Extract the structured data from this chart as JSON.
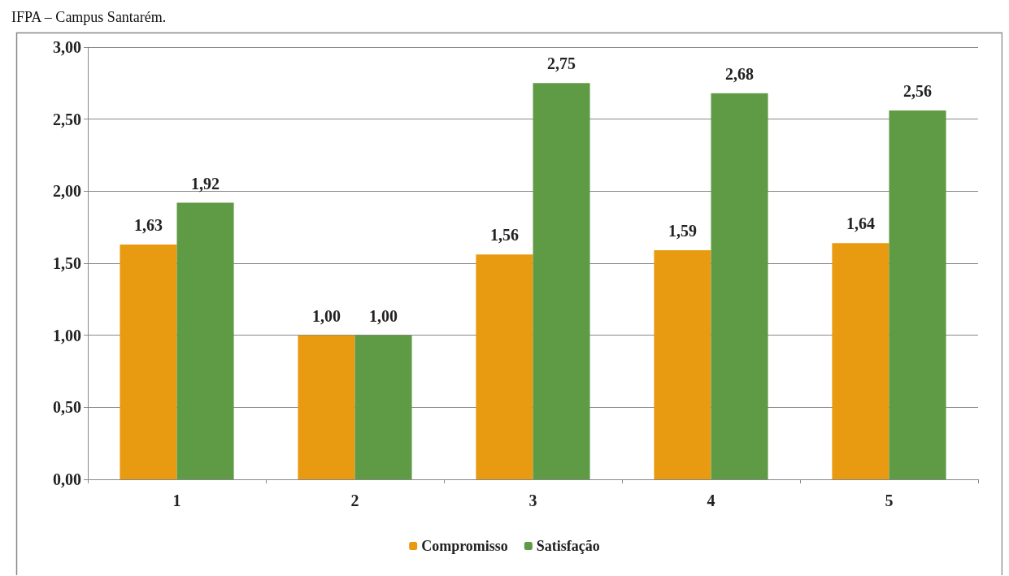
{
  "chart_data": {
    "type": "bar",
    "annotations": [
      "IFPA – Campus Santarém."
    ],
    "categories": [
      "1",
      "2",
      "3",
      "4",
      "5"
    ],
    "series": [
      {
        "name": "Compromisso",
        "color": "#e89a10",
        "values": [
          1.63,
          1.0,
          1.56,
          1.59,
          1.64
        ],
        "value_labels": [
          "1,63",
          "1,00",
          "1,56",
          "1,59",
          "1,64"
        ]
      },
      {
        "name": "Satisfação",
        "color": "#5f9a45",
        "values": [
          1.92,
          1.0,
          2.75,
          2.68,
          2.56
        ],
        "value_labels": [
          "1,92",
          "1,00",
          "2,75",
          "2,68",
          "2,56"
        ]
      }
    ],
    "ylim": [
      0,
      3
    ],
    "yticks": [
      {
        "value": 0,
        "label": "0,00"
      },
      {
        "value": 0.5,
        "label": "0,50"
      },
      {
        "value": 1,
        "label": "1,00"
      },
      {
        "value": 1.5,
        "label": "1,50"
      },
      {
        "value": 2,
        "label": "2,00"
      },
      {
        "value": 2.5,
        "label": "2,50"
      },
      {
        "value": 3,
        "label": "3,00"
      }
    ],
    "grid": "y",
    "legend": "bottom"
  }
}
